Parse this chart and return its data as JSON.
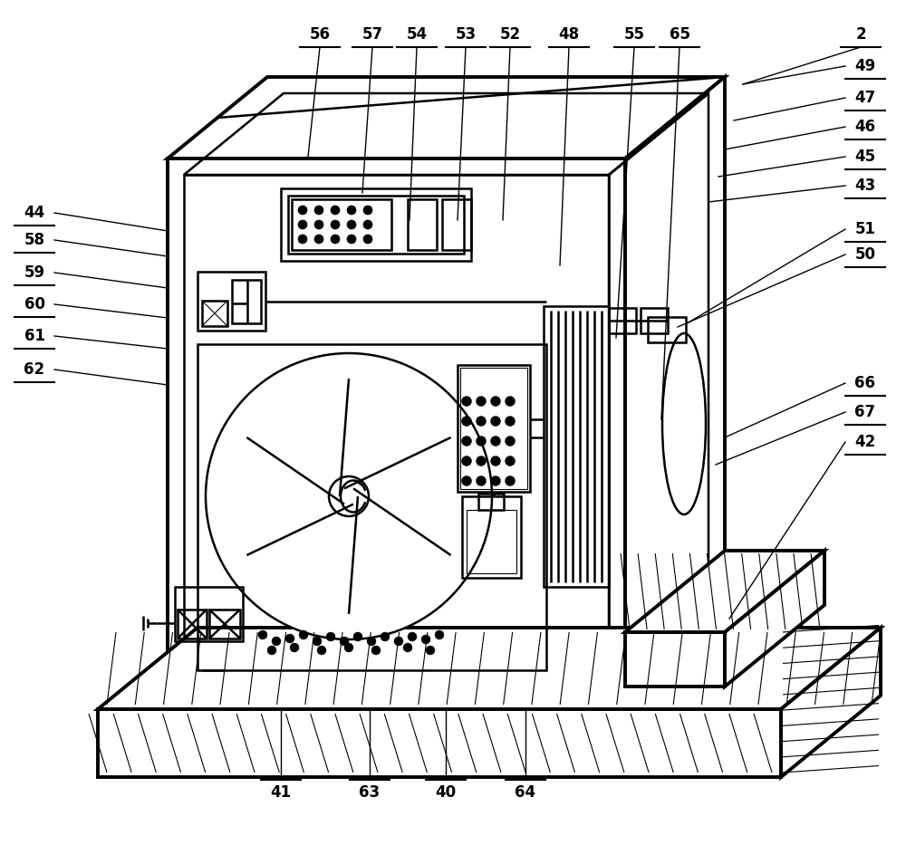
{
  "bg_color": "#ffffff",
  "lc": "#000000",
  "lw": 1.8,
  "blw": 2.8,
  "fig_w": 10.0,
  "fig_h": 9.33,
  "dpi": 100
}
